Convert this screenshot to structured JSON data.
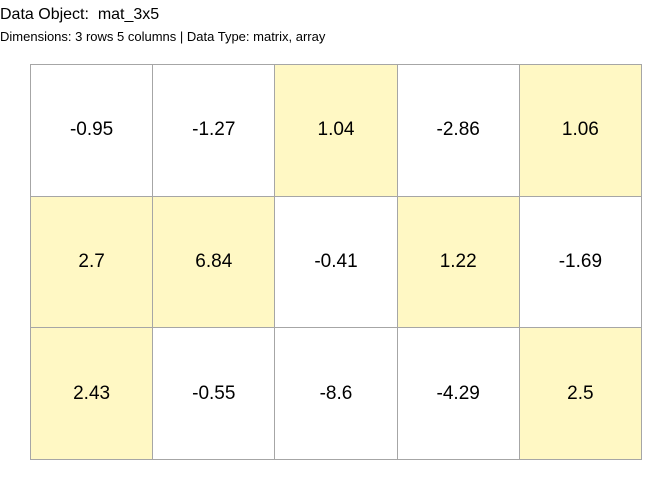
{
  "header": {
    "title": "Data Object:  mat_3x5",
    "subtitle": "Dimensions: 3 rows 5 columns | Data Type: matrix, array"
  },
  "colors": {
    "highlight": "#fff8c4",
    "plain": "#ffffff",
    "grid": "#a6a6a6"
  },
  "matrix": {
    "rows": [
      [
        {
          "value": "-0.95",
          "highlight": false
        },
        {
          "value": "-1.27",
          "highlight": false
        },
        {
          "value": "1.04",
          "highlight": true
        },
        {
          "value": "-2.86",
          "highlight": false
        },
        {
          "value": "1.06",
          "highlight": true
        }
      ],
      [
        {
          "value": "2.7",
          "highlight": true
        },
        {
          "value": "6.84",
          "highlight": true
        },
        {
          "value": "-0.41",
          "highlight": false
        },
        {
          "value": "1.22",
          "highlight": true
        },
        {
          "value": "-1.69",
          "highlight": false
        }
      ],
      [
        {
          "value": "2.43",
          "highlight": true
        },
        {
          "value": "-0.55",
          "highlight": false
        },
        {
          "value": "-8.6",
          "highlight": false
        },
        {
          "value": "-4.29",
          "highlight": false
        },
        {
          "value": "2.5",
          "highlight": true
        }
      ]
    ]
  }
}
